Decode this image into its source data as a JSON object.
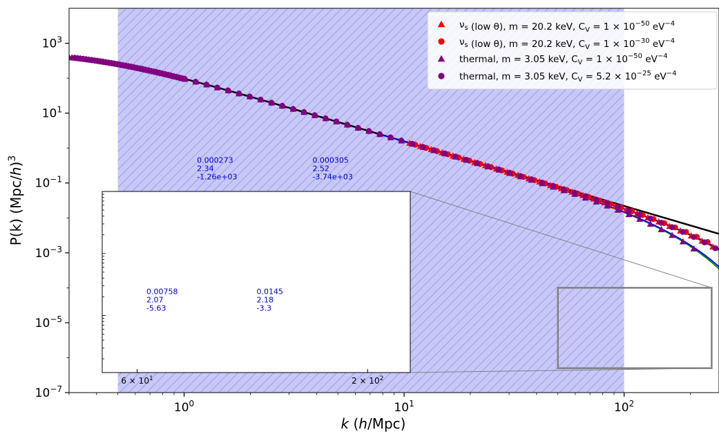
{
  "chart_data": {
    "type": "scatter",
    "x_scale": "log",
    "y_scale": "log",
    "xlim": [
      0.3,
      270
    ],
    "ylim": [
      1e-07,
      10000.0
    ],
    "xlabel_parts": {
      "pre": "k (",
      "italic_h": "h",
      "post": "/Mpc)"
    },
    "ylabel_parts": {
      "pre": "P(k) (Mpc/",
      "italic_h": "h",
      "post": ")",
      "sup": "3"
    },
    "x_ticks": [
      {
        "value": 1,
        "base": "10",
        "exp": "0"
      },
      {
        "value": 10,
        "base": "10",
        "exp": "1"
      },
      {
        "value": 100,
        "base": "10",
        "exp": "2"
      }
    ],
    "y_ticks": [
      {
        "value": 1000,
        "base": "10",
        "exp": "3"
      },
      {
        "value": 10,
        "base": "10",
        "exp": "1"
      },
      {
        "value": 0.1,
        "base": "10",
        "exp": "−1"
      },
      {
        "value": 0.001,
        "base": "10",
        "exp": "−3"
      },
      {
        "value": 1e-05,
        "base": "10",
        "exp": "−5"
      },
      {
        "value": 1e-07,
        "base": "10",
        "exp": "−7"
      }
    ],
    "shaded_region": {
      "x_start": 0.5,
      "x_end": 100,
      "color": "#c8c8f8",
      "hatch_color": "#9d9de8"
    },
    "reference_curve": {
      "color": "#000000",
      "A": 600,
      "k1": 0.4,
      "n": 1.85
    },
    "series": [
      {
        "legend": {
          "pre": "ν",
          "sub": "s",
          "mid": " (low θ), m = 20.2 keV, C",
          "csub": "V",
          "eq": " = 1 × 10",
          "exp": "−50",
          "unit": " eV",
          "unitexp": "−4"
        },
        "marker": "triangle",
        "color": "#ff0000",
        "kc": 420,
        "alpha": 1.7,
        "kmin": 10.6,
        "kmax": 265,
        "spacing": 1.12,
        "offset": 1.0
      },
      {
        "legend": {
          "pre": "ν",
          "sub": "s",
          "mid": " (low θ), m = 20.2 keV, C",
          "csub": "V",
          "eq": " = 1 × 10",
          "exp": "−30",
          "unit": " eV",
          "unitexp": "−4"
        },
        "marker": "circle",
        "color": "#ff0000",
        "kc": 460,
        "alpha": 1.7,
        "kmin": 10.6,
        "kmax": 265,
        "spacing": 1.12,
        "offset": 1.06
      },
      {
        "legend": {
          "pre": "thermal, m = 3.05 keV, C",
          "sub": "",
          "mid": "",
          "csub": "V",
          "eq": " = 1 × 10",
          "exp": "−50",
          "unit": " eV",
          "unitexp": "−4"
        },
        "marker": "triangle",
        "color": "#800080",
        "kc": 270,
        "alpha": 1.7,
        "kmin": 0.3,
        "kmax": 230,
        "spacing": 1.12,
        "offset": 1.0
      },
      {
        "legend": {
          "pre": "thermal, m = 3.05 keV, C",
          "sub": "",
          "mid": "",
          "csub": "V",
          "eq": " = 5.2 × 10",
          "exp": "−25",
          "unit": " eV",
          "unitexp": "−4"
        },
        "marker": "circle",
        "color": "#800080",
        "kc": 420,
        "alpha": 1.7,
        "kmin": 0.3,
        "kmax": 270,
        "spacing": 1.12,
        "offset": 1.06
      }
    ],
    "fit_curves": [
      {
        "color": "#008000",
        "kc": 270
      },
      {
        "color": "#0000ff",
        "kc": 280
      },
      {
        "color": "#008000",
        "kc": 420
      },
      {
        "color": "#0000ff",
        "kc": 440
      }
    ],
    "zoom_box": {
      "x": [
        50,
        250
      ],
      "y": [
        5e-07,
        0.0001
      ],
      "color": "#808080"
    },
    "inset": {
      "xlim": [
        50,
        250
      ],
      "ylim": [
        1.2e-07,
        0.0001
      ],
      "x_ticks": [
        {
          "value": 60,
          "coef": "6 × 10",
          "exp": "1"
        },
        {
          "value": 200,
          "coef": "2 × 10",
          "exp": "2"
        }
      ],
      "annotations": [
        {
          "lines": [
            "0.000273",
            "2.34",
            "-1.26e+03"
          ],
          "x": 82,
          "y": 0.00029
        },
        {
          "lines": [
            "0.000305",
            "2.52",
            "-3.74e+03"
          ],
          "x": 150,
          "y": 0.00029
        },
        {
          "lines": [
            "0.00758",
            "2.07",
            "-5.63"
          ],
          "x": 63,
          "y": 2.2e-06
        },
        {
          "lines": [
            "0.0145",
            "2.18",
            "-3.3"
          ],
          "x": 112,
          "y": 2.2e-06
        }
      ]
    }
  }
}
